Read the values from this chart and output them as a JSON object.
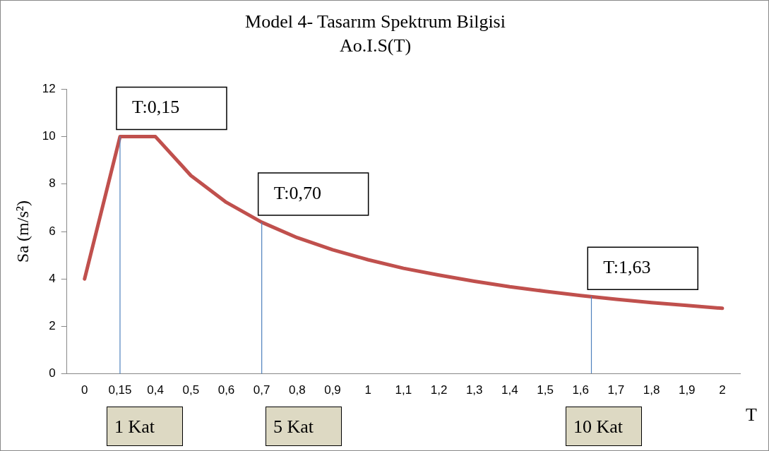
{
  "chart_data": {
    "type": "line",
    "title": "Model 4- Tasarım Spektrum Bilgisi",
    "subtitle": "Ao.I.S(T)",
    "xlabel": "T",
    "ylabel": "Sa (m/s²)",
    "categories": [
      "0",
      "0,15",
      "0,4",
      "0,5",
      "0,6",
      "0,7",
      "0,8",
      "0,9",
      "1",
      "1,1",
      "1,2",
      "1,3",
      "1,4",
      "1,5",
      "1,6",
      "1,7",
      "1,8",
      "1,9",
      "2"
    ],
    "series": [
      {
        "color": "#c0504d",
        "values": [
          4,
          10,
          10,
          8.36,
          7.23,
          6.39,
          5.74,
          5.23,
          4.81,
          4.45,
          4.16,
          3.9,
          3.67,
          3.48,
          3.3,
          3.14,
          3.0,
          2.88,
          2.76
        ]
      }
    ],
    "ylim": [
      0,
      12
    ],
    "yticks": [
      0,
      2,
      4,
      6,
      8,
      10,
      12
    ],
    "grid": false,
    "legend": false,
    "marker": "none",
    "line_style": "solid",
    "annotations": [
      "T:1,63",
      "1 Kat",
      "5 Kat",
      "10 Kat"
    ],
    "ref_lines": [
      {
        "axis": "x",
        "value": "0,15",
        "label": "T:0,15",
        "color": "#4f81bd"
      },
      {
        "axis": "x",
        "value": "0,7",
        "label": "T:0,70",
        "color": "#4f81bd"
      }
    ]
  }
}
